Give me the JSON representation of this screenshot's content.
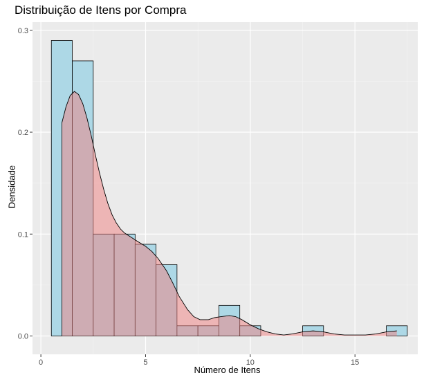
{
  "chart_data": {
    "type": "histogram",
    "title": "Distribuição de Itens por Compra",
    "xlabel": "Número de Itens",
    "ylabel": "Densidade",
    "xlim": [
      -0.4,
      18.0
    ],
    "ylim": [
      -0.018,
      0.308
    ],
    "x_ticks": [
      0,
      5,
      10,
      15
    ],
    "y_ticks": [
      0.0,
      0.1,
      0.2,
      0.3
    ],
    "x_tick_labels": [
      "0",
      "5",
      "10",
      "15"
    ],
    "y_tick_labels": [
      "0.0",
      "0.1",
      "0.2",
      "0.3"
    ],
    "grid": true,
    "histogram": {
      "bin_width": 1,
      "fill": "#add8e6",
      "bins": [
        {
          "center": 1,
          "density": 0.29
        },
        {
          "center": 2,
          "density": 0.27
        },
        {
          "center": 3,
          "density": 0.1
        },
        {
          "center": 4,
          "density": 0.1
        },
        {
          "center": 5,
          "density": 0.09
        },
        {
          "center": 6,
          "density": 0.07
        },
        {
          "center": 7,
          "density": 0.01
        },
        {
          "center": 8,
          "density": 0.01
        },
        {
          "center": 9,
          "density": 0.03
        },
        {
          "center": 10,
          "density": 0.01
        },
        {
          "center": 11,
          "density": 0.0
        },
        {
          "center": 12,
          "density": 0.0
        },
        {
          "center": 13,
          "density": 0.01
        },
        {
          "center": 14,
          "density": 0.0
        },
        {
          "center": 15,
          "density": 0.0
        },
        {
          "center": 16,
          "density": 0.0
        },
        {
          "center": 17,
          "density": 0.01
        }
      ]
    },
    "density_curve": {
      "fill": "#f08080",
      "points": [
        [
          1.0,
          0.209
        ],
        [
          1.2,
          0.225
        ],
        [
          1.4,
          0.236
        ],
        [
          1.6,
          0.24
        ],
        [
          1.8,
          0.237
        ],
        [
          2.0,
          0.228
        ],
        [
          2.2,
          0.214
        ],
        [
          2.4,
          0.197
        ],
        [
          2.6,
          0.178
        ],
        [
          2.8,
          0.16
        ],
        [
          3.0,
          0.144
        ],
        [
          3.2,
          0.13
        ],
        [
          3.4,
          0.119
        ],
        [
          3.6,
          0.111
        ],
        [
          3.8,
          0.105
        ],
        [
          4.0,
          0.101
        ],
        [
          4.3,
          0.097
        ],
        [
          4.6,
          0.093
        ],
        [
          5.0,
          0.088
        ],
        [
          5.3,
          0.083
        ],
        [
          5.6,
          0.076
        ],
        [
          6.0,
          0.064
        ],
        [
          6.3,
          0.052
        ],
        [
          6.6,
          0.039
        ],
        [
          7.0,
          0.026
        ],
        [
          7.3,
          0.019
        ],
        [
          7.6,
          0.016
        ],
        [
          8.0,
          0.016
        ],
        [
          8.3,
          0.018
        ],
        [
          8.6,
          0.019
        ],
        [
          9.0,
          0.02
        ],
        [
          9.3,
          0.019
        ],
        [
          9.6,
          0.016
        ],
        [
          10.0,
          0.011
        ],
        [
          10.4,
          0.007
        ],
        [
          10.8,
          0.004
        ],
        [
          11.2,
          0.002
        ],
        [
          11.6,
          0.001
        ],
        [
          12.0,
          0.002
        ],
        [
          12.5,
          0.004
        ],
        [
          13.0,
          0.005
        ],
        [
          13.5,
          0.004
        ],
        [
          14.0,
          0.002
        ],
        [
          14.5,
          0.001
        ],
        [
          15.0,
          0.001
        ],
        [
          15.5,
          0.001
        ],
        [
          16.0,
          0.002
        ],
        [
          16.5,
          0.004
        ],
        [
          17.0,
          0.005
        ]
      ]
    }
  }
}
